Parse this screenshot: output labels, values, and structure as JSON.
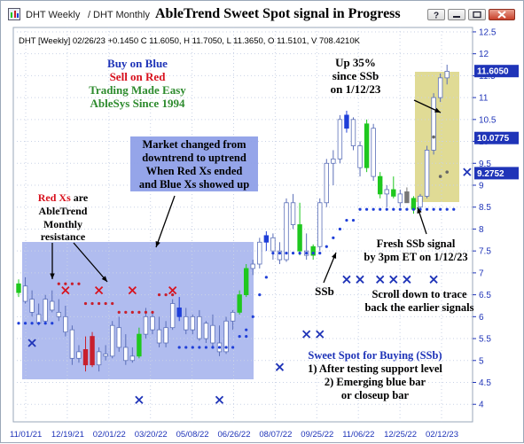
{
  "window": {
    "tabs": [
      "DHT Weekly",
      "DHT Monthly"
    ],
    "tab_separator": "/",
    "title": "AbleTrend Sweet Spot signal in Progress"
  },
  "chart_data": {
    "type": "candlestick",
    "symbol_line": "DHT [Weekly] 02/26/23 +0.1450 C 11.6050, H 11.7050, L 11.3650, O 11.5101, V 708.4210K",
    "x_tick_labels": [
      "11/01/21",
      "12/19/21",
      "02/01/22",
      "03/20/22",
      "05/08/22",
      "06/26/22",
      "08/07/22",
      "09/25/22",
      "11/06/22",
      "12/25/22",
      "02/12/23"
    ],
    "ylim": [
      3.6,
      12.6
    ],
    "y_ticks": [
      4,
      4.5,
      5,
      5.5,
      6,
      6.5,
      7,
      7.5,
      8,
      8.5,
      9,
      9.5,
      10,
      10.5,
      11,
      11.5,
      12,
      12.5
    ],
    "price_boxes": [
      {
        "value": 11.605,
        "label": "11.6050",
        "color": "#1f34b8"
      },
      {
        "value": 10.0775,
        "label": "10.0775",
        "color": "#1f34b8"
      },
      {
        "value": 9.2752,
        "label": "9.2752",
        "color": "#1f34b8"
      }
    ],
    "candles": [
      {
        "o": 6.55,
        "h": 6.85,
        "l": 6.45,
        "c": 6.75,
        "color": "green"
      },
      {
        "o": 6.7,
        "h": 6.9,
        "l": 6.3,
        "c": 6.35,
        "color": "white"
      },
      {
        "o": 6.4,
        "h": 6.6,
        "l": 6.0,
        "c": 6.1,
        "color": "white"
      },
      {
        "o": 6.05,
        "h": 6.3,
        "l": 5.8,
        "c": 5.85,
        "color": "white"
      },
      {
        "o": 5.9,
        "h": 6.5,
        "l": 5.85,
        "c": 6.4,
        "color": "white"
      },
      {
        "o": 6.35,
        "h": 6.6,
        "l": 6.1,
        "c": 6.15,
        "color": "white"
      },
      {
        "o": 6.1,
        "h": 6.4,
        "l": 5.9,
        "c": 6.0,
        "color": "white"
      },
      {
        "o": 6.0,
        "h": 6.25,
        "l": 5.55,
        "c": 5.65,
        "color": "white"
      },
      {
        "o": 5.7,
        "h": 5.8,
        "l": 4.9,
        "c": 5.05,
        "color": "white"
      },
      {
        "o": 5.05,
        "h": 5.35,
        "l": 4.95,
        "c": 5.2,
        "color": "white"
      },
      {
        "o": 5.25,
        "h": 5.55,
        "l": 4.75,
        "c": 4.9,
        "color": "red"
      },
      {
        "o": 5.55,
        "h": 5.65,
        "l": 4.85,
        "c": 4.9,
        "color": "red"
      },
      {
        "o": 4.9,
        "h": 5.3,
        "l": 4.75,
        "c": 5.2,
        "color": "white"
      },
      {
        "o": 5.15,
        "h": 5.35,
        "l": 5.0,
        "c": 5.1,
        "color": "white"
      },
      {
        "o": 5.1,
        "h": 5.9,
        "l": 5.05,
        "c": 5.8,
        "color": "white"
      },
      {
        "o": 5.75,
        "h": 6.0,
        "l": 5.2,
        "c": 5.3,
        "color": "white"
      },
      {
        "o": 5.3,
        "h": 5.6,
        "l": 4.9,
        "c": 5.0,
        "color": "white"
      },
      {
        "o": 5.0,
        "h": 5.3,
        "l": 4.95,
        "c": 5.1,
        "color": "white"
      },
      {
        "o": 5.1,
        "h": 5.75,
        "l": 5.05,
        "c": 5.6,
        "color": "green"
      },
      {
        "o": 5.6,
        "h": 6.2,
        "l": 5.5,
        "c": 6.0,
        "color": "white"
      },
      {
        "o": 6.0,
        "h": 6.1,
        "l": 5.6,
        "c": 5.7,
        "color": "white"
      },
      {
        "o": 5.7,
        "h": 6.0,
        "l": 5.3,
        "c": 5.4,
        "color": "white"
      },
      {
        "o": 5.4,
        "h": 5.9,
        "l": 5.3,
        "c": 5.75,
        "color": "white"
      },
      {
        "o": 5.75,
        "h": 6.4,
        "l": 5.7,
        "c": 6.3,
        "color": "white"
      },
      {
        "o": 6.2,
        "h": 6.45,
        "l": 5.9,
        "c": 6.0,
        "color": "blue"
      },
      {
        "o": 6.0,
        "h": 6.2,
        "l": 5.6,
        "c": 5.7,
        "color": "white"
      },
      {
        "o": 5.7,
        "h": 6.05,
        "l": 5.6,
        "c": 6.0,
        "color": "white"
      },
      {
        "o": 6.0,
        "h": 6.15,
        "l": 5.45,
        "c": 5.5,
        "color": "white"
      },
      {
        "o": 5.5,
        "h": 5.9,
        "l": 5.4,
        "c": 5.85,
        "color": "white"
      },
      {
        "o": 5.8,
        "h": 6.05,
        "l": 5.3,
        "c": 5.4,
        "color": "white"
      },
      {
        "o": 5.4,
        "h": 5.8,
        "l": 5.1,
        "c": 5.2,
        "color": "white"
      },
      {
        "o": 5.2,
        "h": 6.0,
        "l": 5.15,
        "c": 5.9,
        "color": "white"
      },
      {
        "o": 5.9,
        "h": 6.15,
        "l": 5.7,
        "c": 6.1,
        "color": "white"
      },
      {
        "o": 6.1,
        "h": 6.6,
        "l": 6.05,
        "c": 6.5,
        "color": "green"
      },
      {
        "o": 6.5,
        "h": 7.2,
        "l": 6.45,
        "c": 7.1,
        "color": "green"
      },
      {
        "o": 7.1,
        "h": 7.3,
        "l": 6.95,
        "c": 7.2,
        "color": "white"
      },
      {
        "o": 7.2,
        "h": 7.8,
        "l": 7.1,
        "c": 7.7,
        "color": "white"
      },
      {
        "o": 7.7,
        "h": 7.95,
        "l": 7.5,
        "c": 7.85,
        "color": "blue"
      },
      {
        "o": 7.8,
        "h": 7.9,
        "l": 7.3,
        "c": 7.5,
        "color": "white"
      },
      {
        "o": 7.5,
        "h": 7.7,
        "l": 7.2,
        "c": 7.3,
        "color": "white"
      },
      {
        "o": 7.3,
        "h": 8.7,
        "l": 7.25,
        "c": 8.6,
        "color": "white"
      },
      {
        "o": 8.6,
        "h": 8.8,
        "l": 8.0,
        "c": 8.1,
        "color": "white"
      },
      {
        "o": 8.1,
        "h": 8.6,
        "l": 7.4,
        "c": 7.5,
        "color": "green"
      },
      {
        "o": 7.5,
        "h": 7.9,
        "l": 7.3,
        "c": 7.4,
        "color": "white"
      },
      {
        "o": 7.4,
        "h": 7.65,
        "l": 7.3,
        "c": 7.6,
        "color": "green"
      },
      {
        "o": 7.6,
        "h": 8.7,
        "l": 7.5,
        "c": 8.6,
        "color": "white"
      },
      {
        "o": 8.6,
        "h": 9.6,
        "l": 8.5,
        "c": 9.5,
        "color": "white"
      },
      {
        "o": 9.5,
        "h": 9.8,
        "l": 9.0,
        "c": 9.6,
        "color": "white"
      },
      {
        "o": 9.6,
        "h": 10.6,
        "l": 9.5,
        "c": 10.5,
        "color": "white"
      },
      {
        "o": 10.3,
        "h": 10.7,
        "l": 10.2,
        "c": 10.6,
        "color": "blue"
      },
      {
        "o": 10.5,
        "h": 10.55,
        "l": 9.8,
        "c": 9.9,
        "color": "white"
      },
      {
        "o": 9.9,
        "h": 10.0,
        "l": 9.2,
        "c": 9.4,
        "color": "white"
      },
      {
        "o": 9.4,
        "h": 10.5,
        "l": 9.3,
        "c": 10.4,
        "color": "green"
      },
      {
        "o": 10.3,
        "h": 10.4,
        "l": 9.1,
        "c": 9.2,
        "color": "white"
      },
      {
        "o": 9.2,
        "h": 9.3,
        "l": 8.7,
        "c": 8.8,
        "color": "green"
      },
      {
        "o": 8.8,
        "h": 9.0,
        "l": 8.5,
        "c": 8.9,
        "color": "white"
      },
      {
        "o": 8.9,
        "h": 9.2,
        "l": 8.7,
        "c": 8.75,
        "color": "green"
      },
      {
        "o": 8.8,
        "h": 8.9,
        "l": 8.5,
        "c": 8.6,
        "color": "white"
      },
      {
        "o": 8.6,
        "h": 8.95,
        "l": 8.6,
        "c": 8.85,
        "color": "gray"
      },
      {
        "o": 8.7,
        "h": 8.75,
        "l": 8.35,
        "c": 8.45,
        "color": "green"
      },
      {
        "o": 8.5,
        "h": 8.8,
        "l": 8.4,
        "c": 8.75,
        "color": "white"
      },
      {
        "o": 8.75,
        "h": 9.9,
        "l": 8.7,
        "c": 9.8,
        "color": "white"
      },
      {
        "o": 9.8,
        "h": 11.1,
        "l": 9.7,
        "c": 11.0,
        "color": "white"
      },
      {
        "o": 11.0,
        "h": 11.55,
        "l": 10.9,
        "c": 11.45,
        "color": "white"
      },
      {
        "o": 11.45,
        "h": 11.75,
        "l": 11.3,
        "c": 11.6,
        "color": "white"
      }
    ],
    "support_dots": [
      {
        "from": 0,
        "to": 2,
        "value": 5.85
      },
      {
        "from": 3,
        "to": 5,
        "value": 5.85
      },
      {
        "from": 24,
        "to": 32,
        "value": 5.3
      },
      {
        "from": 33,
        "to": 34,
        "value": 5.55
      },
      {
        "from": 34,
        "to": 34,
        "value": 5.7
      },
      {
        "from": 35,
        "to": 35,
        "value": 6.0
      },
      {
        "from": 36,
        "to": 36,
        "value": 6.5
      },
      {
        "from": 37,
        "to": 37,
        "value": 6.9
      },
      {
        "from": 38,
        "to": 43,
        "value": 7.45
      },
      {
        "from": 44,
        "to": 45,
        "value": 7.45
      },
      {
        "from": 46,
        "to": 46,
        "value": 7.6
      },
      {
        "from": 47,
        "to": 47,
        "value": 7.8
      },
      {
        "from": 48,
        "to": 48,
        "value": 8.0
      },
      {
        "from": 49,
        "to": 50,
        "value": 8.2
      },
      {
        "from": 51,
        "to": 65,
        "value": 8.45
      }
    ],
    "resistance_dots": [
      {
        "from": 6,
        "to": 9,
        "value": 6.75
      },
      {
        "from": 10,
        "to": 14,
        "value": 6.3
      },
      {
        "from": 15,
        "to": 20,
        "value": 6.1
      },
      {
        "from": 21,
        "to": 23,
        "value": 6.5
      }
    ],
    "gray_dots": [
      {
        "index": 62,
        "value": 10.1
      },
      {
        "index": 64,
        "value": 9.3
      },
      {
        "index": 63,
        "value": 9.2
      }
    ],
    "red_xs": [
      {
        "index": 7,
        "value": 6.6
      },
      {
        "index": 12,
        "value": 6.6
      },
      {
        "index": 17,
        "value": 6.6
      },
      {
        "index": 23,
        "value": 6.6
      }
    ],
    "blue_xs": [
      {
        "index": 2,
        "value": 5.4
      },
      {
        "index": 18,
        "value": 4.1
      },
      {
        "index": 30,
        "value": 4.1
      },
      {
        "index": 39,
        "value": 4.85
      },
      {
        "index": 43,
        "value": 5.6
      },
      {
        "index": 45,
        "value": 5.6
      },
      {
        "index": 49,
        "value": 6.85
      },
      {
        "index": 51,
        "value": 6.85
      },
      {
        "index": 54,
        "value": 6.85
      },
      {
        "index": 56,
        "value": 6.85
      },
      {
        "index": 58,
        "value": 6.85
      },
      {
        "index": 62,
        "value": 6.85
      },
      {
        "index": 67,
        "value": 9.3
      }
    ]
  },
  "annotations": {
    "buy_on_blue": "Buy on Blue",
    "sell_on_red": "Sell on Red",
    "trading_made_easy": "Trading Made Easy",
    "ablesys_since": "AbleSys Since 1994",
    "market_changed": [
      "Market changed from",
      "downtrend to uptrend",
      "When Red Xs ended",
      "and Blue Xs showed up"
    ],
    "red_xs_title": "Red Xs",
    "red_xs_rest": " are",
    "red_xs_lines": [
      "AbleTrend",
      "Monthly",
      "resistance"
    ],
    "up_35": [
      "Up 35%",
      "since SSb",
      "on 1/12/23"
    ],
    "fresh_ssb": [
      "Fresh SSb signal",
      "by 3pm ET on 1/12/23"
    ],
    "ssb_label": "SSb",
    "scroll_down": [
      "Scroll down to trace",
      "back the earlier signals"
    ],
    "sweet_spot": [
      "Sweet Spot for Buying (SSb)",
      "1) After testing support level",
      "2) Emerging blue bar",
      "or closeup bar"
    ]
  },
  "colors": {
    "blue": "#1f34b8",
    "red": "#d8121e",
    "green": "#2e8b2e",
    "shade_blue": "#8fa0e8",
    "shade_yellow": "#d8d27a",
    "candle_green": "#1fc81f",
    "candle_blue": "#1f3fd8",
    "candle_red": "#c81f2c"
  }
}
